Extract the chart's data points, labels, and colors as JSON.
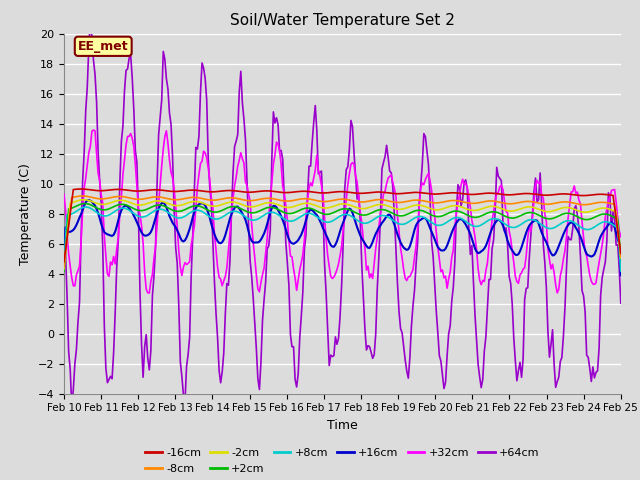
{
  "title": "Soil/Water Temperature Set 2",
  "xlabel": "Time",
  "ylabel": "Temperature (C)",
  "ylim": [
    -4,
    20
  ],
  "yticks": [
    -4,
    -2,
    0,
    2,
    4,
    6,
    8,
    10,
    12,
    14,
    16,
    18,
    20
  ],
  "x_labels": [
    "Feb 10",
    "Feb 11",
    "Feb 12",
    "Feb 13",
    "Feb 14",
    "Feb 15",
    "Feb 16",
    "Feb 17",
    "Feb 18",
    "Feb 19",
    "Feb 20",
    "Feb 21",
    "Feb 22",
    "Feb 23",
    "Feb 24",
    "Feb 25"
  ],
  "bg_color": "#dcdcdc",
  "plot_bg_color": "#dcdcdc",
  "annotation_text": "EE_met",
  "annotation_bg": "#ffffa0",
  "annotation_border": "#800000",
  "series": {
    "-16cm": {
      "color": "#cc0000",
      "lw": 1.2
    },
    "-8cm": {
      "color": "#ff8800",
      "lw": 1.2
    },
    "-2cm": {
      "color": "#dddd00",
      "lw": 1.2
    },
    "+2cm": {
      "color": "#00bb00",
      "lw": 1.2
    },
    "+8cm": {
      "color": "#00cccc",
      "lw": 1.2
    },
    "+16cm": {
      "color": "#0000cc",
      "lw": 1.5
    },
    "+32cm": {
      "color": "#ff00ff",
      "lw": 1.2
    },
    "+64cm": {
      "color": "#9900cc",
      "lw": 1.2
    }
  }
}
